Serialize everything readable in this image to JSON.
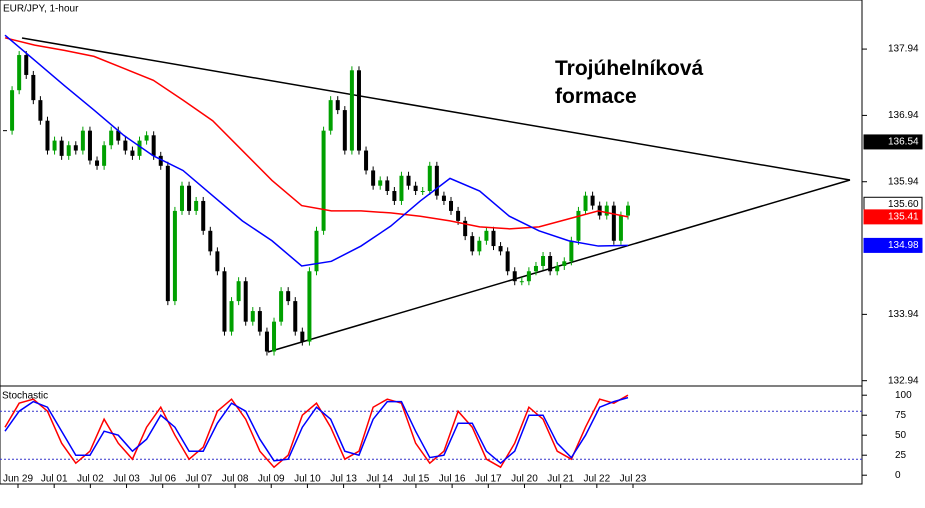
{
  "chart_data": {
    "type": "candlestick",
    "title": "EUR/JPY, 1-hour",
    "annotation": "Trojúhelníková formace",
    "ylim": [
      132.86,
      138.68
    ],
    "yticks": [
      137.94,
      136.94,
      135.94,
      133.94,
      132.94
    ],
    "x_labels": [
      "Jun 29",
      "Jul 01",
      "Jul 02",
      "Jul 03",
      "Jul 06",
      "Jul 07",
      "Jul 08",
      "Jul 09",
      "Jul 10",
      "Jul 13",
      "Jul 14",
      "Jul 15",
      "Jul 16",
      "Jul 17",
      "Jul 20",
      "Jul 21",
      "Jul 22",
      "Jul 23"
    ],
    "price": {
      "up_color": "#00a000",
      "down_color": "#000000",
      "values": [
        136.71,
        137.32,
        137.85,
        137.55,
        137.17,
        136.86,
        136.41,
        136.56,
        136.33,
        136.49,
        136.41,
        136.71,
        136.26,
        136.18,
        136.49,
        136.71,
        136.56,
        136.41,
        136.33,
        136.56,
        136.64,
        136.33,
        136.18,
        134.14,
        135.5,
        135.88,
        135.5,
        135.65,
        135.2,
        134.89,
        134.59,
        133.68,
        134.14,
        134.44,
        133.83,
        133.99,
        133.68,
        133.38,
        133.83,
        134.29,
        134.14,
        133.68,
        133.53,
        134.59,
        135.2,
        136.71,
        137.17,
        137.02,
        136.41,
        137.62,
        136.41,
        136.11,
        135.88,
        135.96,
        135.8,
        135.65,
        136.03,
        135.88,
        135.8,
        135.8,
        136.18,
        135.73,
        135.65,
        135.5,
        135.35,
        135.12,
        134.89,
        135.05,
        135.2,
        134.97,
        134.89,
        134.59,
        134.44,
        134.44,
        134.59,
        134.67,
        134.82,
        134.59,
        134.67,
        134.74,
        135.05,
        135.5,
        135.73,
        135.58,
        135.43,
        135.58,
        135.05,
        135.43,
        135.58
      ]
    },
    "moving_averages": [
      {
        "color": "#ff0000",
        "values": [
          138.11,
          138.0,
          137.92,
          137.83,
          137.65,
          137.47,
          137.17,
          136.86,
          136.41,
          135.96,
          135.58,
          135.5,
          135.5,
          135.47,
          135.42,
          135.35,
          135.26,
          135.23,
          135.26,
          135.38,
          135.5,
          135.41
        ]
      },
      {
        "color": "#0000ff",
        "values": [
          138.15,
          137.77,
          137.39,
          137.02,
          136.64,
          136.33,
          136.11,
          135.73,
          135.35,
          135.05,
          134.67,
          134.74,
          134.97,
          135.27,
          135.65,
          135.99,
          135.8,
          135.42,
          135.2,
          135.05,
          134.97,
          134.98
        ]
      }
    ],
    "axis_markers": [
      {
        "value": 136.54,
        "color": "#000000",
        "text_color": "#ffffff"
      },
      {
        "value": 135.6,
        "label": "135.60",
        "color": "#ffffff",
        "text_color": "#000000"
      },
      {
        "value": 135.41,
        "color": "#ff0000",
        "text_color": "#ffffff"
      },
      {
        "value": 134.98,
        "color": "#0000ff",
        "text_color": "#ffffff"
      }
    ],
    "stochastic": {
      "title": "Stochastic",
      "ylim": [
        -11,
        109
      ],
      "yticks": [
        100,
        75,
        50,
        25,
        0
      ],
      "levels": [
        80,
        20
      ],
      "series": [
        {
          "color": "#ff0000",
          "values": [
            60,
            90,
            95,
            80,
            40,
            15,
            30,
            70,
            40,
            20,
            60,
            85,
            50,
            20,
            35,
            80,
            95,
            70,
            30,
            10,
            25,
            75,
            90,
            60,
            20,
            30,
            85,
            95,
            90,
            40,
            15,
            30,
            80,
            60,
            20,
            10,
            40,
            85,
            70,
            30,
            20,
            60,
            95,
            90,
            100
          ]
        },
        {
          "color": "#0000ff",
          "values": [
            55,
            80,
            92,
            85,
            55,
            25,
            25,
            55,
            50,
            30,
            45,
            75,
            60,
            30,
            30,
            65,
            90,
            80,
            45,
            18,
            20,
            60,
            85,
            70,
            30,
            25,
            70,
            92,
            92,
            55,
            22,
            25,
            65,
            65,
            30,
            15,
            30,
            75,
            75,
            40,
            22,
            50,
            85,
            92,
            97
          ]
        }
      ]
    }
  }
}
